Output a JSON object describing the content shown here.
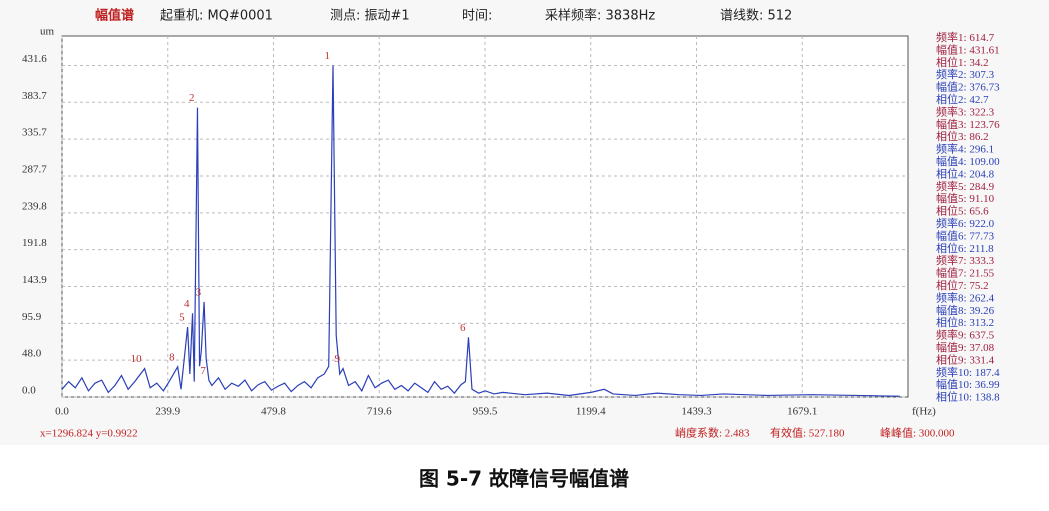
{
  "header": {
    "spectrum": "幅值谱",
    "machine": "起重机: MQ#0001",
    "point": "测点: 振动#1",
    "time": "时间:",
    "sampling": "采样频率: 3838Hz",
    "lines": "谱线数: 512"
  },
  "chart_data": {
    "type": "line",
    "y_label": "um",
    "x_label": "f(Hz)",
    "xlim": [
      0,
      1919
    ],
    "ylim": [
      0,
      470
    ],
    "xticks": [
      {
        "value": 0,
        "label": "0.0"
      },
      239.9,
      479.8,
      719.6,
      959.5,
      1199.4,
      1439.3,
      1679.1
    ],
    "yticks": [
      {
        "value": 0,
        "label": "0.0"
      },
      {
        "value": 48,
        "label": "48.0"
      },
      95.9,
      143.9,
      191.8,
      239.8,
      287.7,
      335.7,
      383.7,
      431.6
    ],
    "grid": true,
    "x": [
      0,
      15,
      30,
      45,
      60,
      75,
      90,
      105,
      120,
      135,
      150,
      165,
      187.4,
      200,
      215,
      230,
      245,
      262.4,
      270,
      284.9,
      290,
      296.1,
      300,
      307.3,
      312,
      316,
      322.3,
      327,
      333.3,
      340,
      355,
      370,
      385,
      400,
      415,
      430,
      445,
      460,
      475,
      490,
      505,
      520,
      535,
      550,
      565,
      580,
      595,
      605,
      614.7,
      622,
      630,
      637.5,
      650,
      665,
      680,
      695,
      710,
      725,
      740,
      755,
      770,
      785,
      800,
      815,
      830,
      845,
      860,
      875,
      890,
      905,
      915,
      922,
      930,
      945,
      960,
      980,
      1000,
      1050,
      1100,
      1150,
      1200,
      1230,
      1250,
      1300,
      1350,
      1400,
      1450,
      1500,
      1600,
      1700,
      1800,
      1900
    ],
    "series": [
      {
        "color": "#2a3fb8",
        "values": [
          10,
          20,
          12,
          25,
          8,
          18,
          22,
          6,
          15,
          28,
          10,
          20,
          36.99,
          12,
          18,
          8,
          22,
          39.26,
          10,
          91.1,
          30,
          109,
          20,
          376.73,
          40,
          60,
          123.76,
          50,
          21.55,
          15,
          25,
          10,
          18,
          14,
          22,
          8,
          16,
          20,
          9,
          14,
          18,
          7,
          15,
          20,
          12,
          25,
          30,
          40,
          431.61,
          80,
          30,
          37.08,
          15,
          20,
          8,
          28,
          12,
          18,
          22,
          10,
          15,
          8,
          18,
          12,
          6,
          20,
          10,
          14,
          5,
          16,
          20,
          77.73,
          10,
          5,
          8,
          4,
          6,
          3,
          5,
          2,
          6,
          10,
          4,
          2,
          5,
          3,
          2,
          4,
          2,
          3,
          2,
          1
        ]
      }
    ],
    "peaks": [
      {
        "marker": "1",
        "freq_text": "频率1: ",
        "freq": 614.7,
        "amp_text": "幅值1: ",
        "amp": 431.61,
        "phase_text": "相位1: ",
        "phase": 34.2
      },
      {
        "marker": "2",
        "freq_text": "频率2: ",
        "freq": 307.3,
        "amp_text": "幅值2: ",
        "amp": 376.73,
        "phase_text": "相位2: ",
        "phase": 42.7
      },
      {
        "marker": "3",
        "freq_text": "频率3: ",
        "freq": 322.3,
        "amp_text": "幅值3: ",
        "amp": 123.76,
        "phase_text": "相位3: ",
        "phase": 86.2
      },
      {
        "marker": "4",
        "freq_text": "频率4: ",
        "freq": 296.1,
        "amp_text": "幅值4: ",
        "amp": {
          "value": 109,
          "label": "109.00"
        },
        "phase_text": "相位4: ",
        "phase": 204.8
      },
      {
        "marker": "5",
        "freq_text": "频率5: ",
        "freq": 284.9,
        "amp_text": "幅值5: ",
        "amp": {
          "value": 91.1,
          "label": "91.10"
        },
        "phase_text": "相位5: ",
        "phase": 65.6
      },
      {
        "marker": "6",
        "freq_text": "频率6: ",
        "freq": {
          "value": 922,
          "label": "922.0"
        },
        "amp_text": "幅值6: ",
        "amp": 77.73,
        "phase_text": "相位6: ",
        "phase": 211.8
      },
      {
        "marker": "7",
        "freq_text": "频率7: ",
        "freq": 333.3,
        "amp_text": "幅值7: ",
        "amp": 21.55,
        "phase_text": "相位7: ",
        "phase": 75.2
      },
      {
        "marker": "8",
        "freq_text": "频率8: ",
        "freq": 262.4,
        "amp_text": "幅值8: ",
        "amp": 39.26,
        "phase_text": "相位8: ",
        "phase": 313.2
      },
      {
        "marker": "9",
        "freq_text": "频率9: ",
        "freq": 637.5,
        "amp_text": "幅值9: ",
        "amp": 37.08,
        "phase_text": "相位9: ",
        "phase": 331.4
      },
      {
        "marker": "10",
        "freq_text": "频率10: ",
        "freq": 187.4,
        "amp_text": "幅值10: ",
        "amp": 36.99,
        "phase_text": "相位10: ",
        "phase": 138.8
      }
    ]
  },
  "status": {
    "cursor": "x=1296.824  y=0.9922",
    "kurtosis": "峭度系数: 2.483",
    "rms": "有效值: 527.180",
    "peak_to_peak": "峰峰值: 300.000"
  },
  "caption": "图 5-7 故障信号幅值谱"
}
